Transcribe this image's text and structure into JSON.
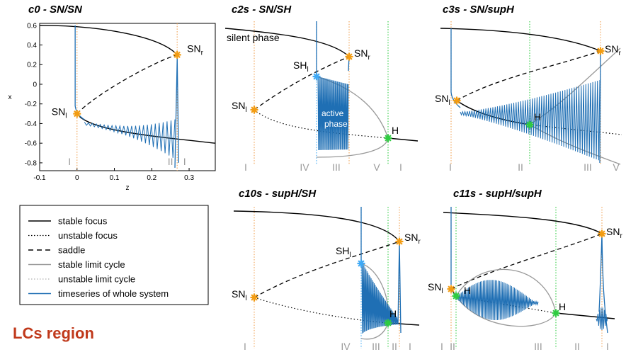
{
  "region_title": "LCs region",
  "colors": {
    "curve": "#000000",
    "stable_lc": "#999999",
    "timeseries": "#1f6fb4",
    "sn_marker": "#f39c12",
    "sh_marker": "#3fa9f5",
    "h_marker": "#2ecc40",
    "marker_label_red": "#e02020",
    "line_orange": "#f0a050",
    "line_blue": "#3fa9f5",
    "line_green": "#2ecc40",
    "region_title": "#c0391b"
  },
  "legend": [
    {
      "label": "stable focus",
      "style": "solid-black"
    },
    {
      "label": "unstable focus",
      "style": "dotted-black"
    },
    {
      "label": "saddle",
      "style": "dashed-black"
    },
    {
      "label": "stable limit cycle",
      "style": "solid-gray"
    },
    {
      "label": "unstable limit cycle",
      "style": "dotted-gray"
    },
    {
      "label": "timeseries of whole system",
      "style": "solid-blue"
    }
  ],
  "chart_data": [
    {
      "type": "line",
      "title": "c0 - SN/SN",
      "xlabel": "z",
      "ylabel": "x",
      "xlim": [
        -0.1,
        0.37
      ],
      "ylim": [
        -0.88,
        0.62
      ],
      "xticks": [
        "-0.1",
        "0",
        "0.1",
        "0.2",
        "0.3"
      ],
      "yticks": [
        "0.6",
        "0.4",
        "0.2",
        "0",
        "-0.2",
        "-0.4",
        "-0.6",
        "-0.8"
      ],
      "markers": [
        {
          "label": "SN",
          "sub": "l",
          "x": 0.0,
          "y": -0.3
        },
        {
          "label": "SN",
          "sub": "r",
          "x": 0.268,
          "y": 0.3
        }
      ],
      "regions": [
        "I",
        "II",
        "I"
      ]
    },
    {
      "type": "line",
      "title": "c2s - SN/SH",
      "annotations": [
        "silent phase",
        "active phase"
      ],
      "markers": [
        {
          "label": "SN",
          "sub": "l"
        },
        {
          "label": "SH",
          "sub": "l"
        },
        {
          "label": "SN",
          "sub": "r"
        },
        {
          "label": "H"
        }
      ],
      "regions": [
        "I",
        "IV",
        "III",
        "V",
        "I"
      ]
    },
    {
      "type": "line",
      "title": "c3s - SN/supH",
      "markers": [
        {
          "label": "SN",
          "sub": "l"
        },
        {
          "label": "H"
        },
        {
          "label": "SN",
          "sub": "r"
        }
      ],
      "regions": [
        "I",
        "II",
        "III",
        "V"
      ]
    },
    {
      "type": "line",
      "title": "c10s - supH/SH",
      "markers": [
        {
          "label": "SN",
          "sub": "l"
        },
        {
          "label": "SH",
          "sub": "l"
        },
        {
          "label": "H"
        },
        {
          "label": "SN",
          "sub": "r"
        }
      ],
      "regions": [
        "I",
        "IV",
        "III",
        "II",
        "I"
      ]
    },
    {
      "type": "line",
      "title": "c11s - supH/supH",
      "markers": [
        {
          "label": "SN",
          "sub": "l"
        },
        {
          "label": "H"
        },
        {
          "label": "H"
        },
        {
          "label": "SN",
          "sub": "r"
        }
      ],
      "regions": [
        "I",
        "II",
        "III",
        "II",
        "I"
      ]
    }
  ]
}
